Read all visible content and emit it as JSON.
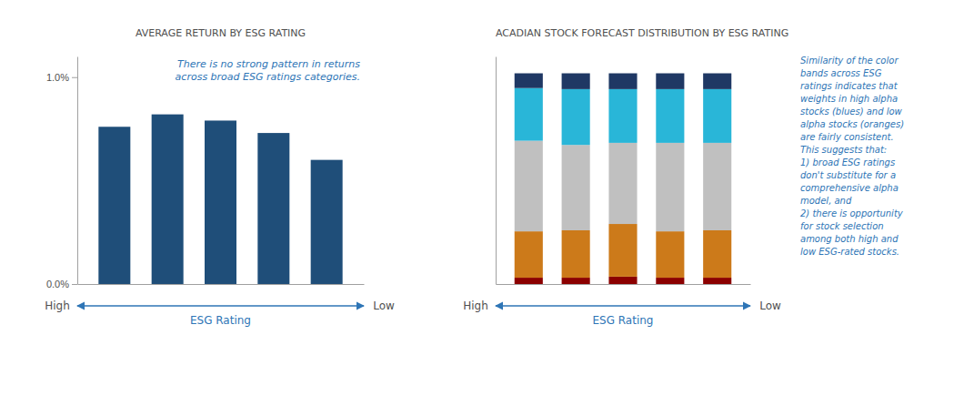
{
  "chart_data": [
    {
      "type": "bar",
      "title": "AVERAGE RETURN BY ESG RATING",
      "categories": [
        null,
        null,
        null,
        null,
        null
      ],
      "values": [
        0.76,
        0.82,
        0.79,
        0.73,
        0.6
      ],
      "color": "#1F4E79",
      "ylim": [
        0,
        1.1
      ],
      "yticks": [
        {
          "value": 0.0,
          "label": "0.0%"
        },
        {
          "value": 1.0,
          "label": "1.0%"
        }
      ],
      "tick_labels": "y",
      "grid": false,
      "xlabel": "ESG Rating",
      "annotations": [
        "There is no strong pattern in returns\nacross broad ESG ratings categories.",
        "High",
        "Low"
      ]
    },
    {
      "type": "bar",
      "title": "ACADIAN STOCK FORECAST DISTRIBUTION BY ESG RATING",
      "categories": [
        null,
        null,
        null,
        null,
        null
      ],
      "stacked": true,
      "series": [
        {
          "color": "#8B0000",
          "values": [
            0.03,
            0.03,
            0.035,
            0.03,
            0.03
          ]
        },
        {
          "color": "#CC7A1A",
          "values": [
            0.22,
            0.225,
            0.25,
            0.22,
            0.225
          ]
        },
        {
          "color": "#C0C0C0",
          "values": [
            0.43,
            0.405,
            0.385,
            0.42,
            0.415
          ]
        },
        {
          "color": "#29B6D8",
          "values": [
            0.25,
            0.265,
            0.255,
            0.255,
            0.255
          ]
        },
        {
          "color": "#1F3864",
          "values": [
            0.07,
            0.075,
            0.075,
            0.075,
            0.075
          ]
        }
      ],
      "ylim": [
        0,
        1.08
      ],
      "tick_labels": false,
      "grid": false,
      "xlabel": "ESG Rating",
      "annotations": [
        "Similarity of the color\nbands across ESG\nratings indicates that\nweights in high alpha\nstocks (blues) and low\nalpha stocks (oranges)\nare fairly consistent.\nThis suggests that:\n1) broad ESG ratings\ndon't substitute for a\ncomprehensive alpha\nmodel, and\n2) there is opportunity\nfor stock selection\namong both high and\nlow ESG-rated stocks.",
        "High",
        "Low"
      ]
    }
  ]
}
